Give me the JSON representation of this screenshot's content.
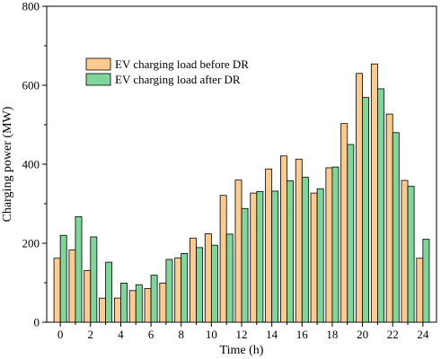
{
  "chart_data": {
    "type": "bar",
    "xlabel": "Time (h)",
    "ylabel": "Charging power (MW)",
    "xlim": [
      -0.9,
      24.9
    ],
    "ylim": [
      0,
      800
    ],
    "xticks": [
      0,
      2,
      4,
      6,
      8,
      10,
      12,
      14,
      16,
      18,
      20,
      22,
      24
    ],
    "yticks": [
      0,
      200,
      400,
      600,
      800
    ],
    "x": [
      0,
      1,
      2,
      3,
      4,
      5,
      6,
      7,
      8,
      9,
      10,
      11,
      12,
      13,
      14,
      15,
      16,
      17,
      18,
      19,
      20,
      21,
      22,
      23,
      24
    ],
    "series": [
      {
        "name": "EV charging load before DR",
        "color": "#fdcb8e",
        "values": [
          162,
          183,
          131,
          61,
          61,
          80,
          85,
          99,
          163,
          213,
          224,
          321,
          360,
          327,
          388,
          421,
          413,
          327,
          391,
          503,
          630,
          654,
          527,
          359,
          162
        ]
      },
      {
        "name": "EV charging load after DR",
        "color": "#7ed69a",
        "values": [
          220,
          267,
          216,
          152,
          99,
          95,
          119,
          159,
          174,
          189,
          195,
          223,
          288,
          331,
          332,
          358,
          367,
          338,
          393,
          450,
          569,
          591,
          480,
          344,
          210
        ]
      }
    ],
    "legend_position": "top-left"
  }
}
